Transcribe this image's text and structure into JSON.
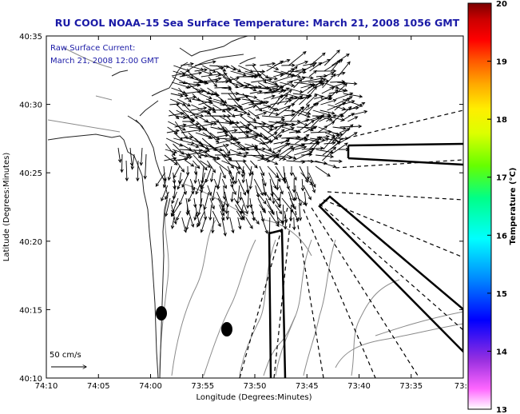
{
  "title": "RU COOL  NOAA–15  Sea Surface Temperature:  March 21, 2008 1056 GMT",
  "annotation": {
    "line1": "Raw Surface Current:",
    "line2": "March 21, 2008 12:00 GMT"
  },
  "scale": {
    "label": "50 cm/s"
  },
  "axes": {
    "xlabel": "Longitude (Degrees:Minutes)",
    "ylabel": "Latitude (Degrees:Minutes)",
    "xticks": [
      "74:10",
      "74:05",
      "74:00",
      "73:55",
      "73:50",
      "73:45",
      "73:40",
      "73:35",
      "73:3"
    ],
    "yticks": [
      "40:35",
      "40:30",
      "40:25",
      "40:20",
      "40:15",
      "40:10"
    ]
  },
  "colorbar": {
    "label": "Temperature (°C)",
    "ticks": [
      "20",
      "19",
      "18",
      "17",
      "16",
      "15",
      "14",
      "13"
    ],
    "range": [
      13,
      20
    ],
    "colors": [
      "#ffffff",
      "#ff66ff",
      "#8a2be2",
      "#0000ff",
      "#0088ff",
      "#00ffff",
      "#00ff88",
      "#66ff00",
      "#ddff00",
      "#ffee00",
      "#ffaa00",
      "#ff5500",
      "#ff0000",
      "#cc0000",
      "#7a0000"
    ]
  },
  "map_features": {
    "coastline": "New Jersey / Staten Island shoreline",
    "transects": "Shipping channel polygons (solid) and radar sector lines (dashed)",
    "markers": [
      "station-dot-1",
      "station-dot-2"
    ]
  }
}
